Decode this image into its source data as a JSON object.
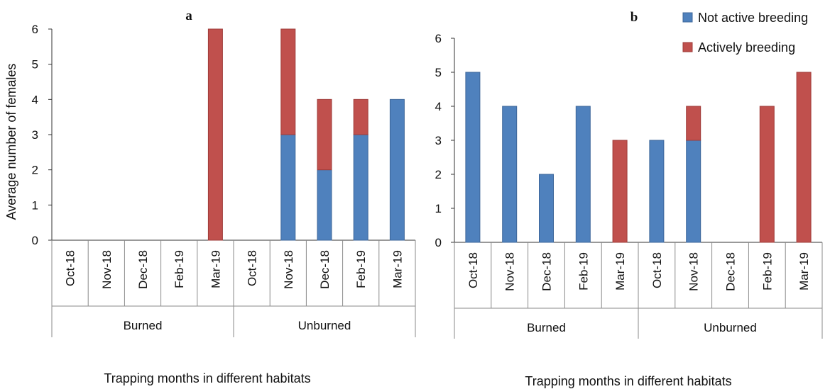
{
  "colors": {
    "not_active": "#4f81bd",
    "active": "#c0504d",
    "not_active_edge": "#3c6699",
    "active_edge": "#9e3b39"
  },
  "legend": {
    "items": [
      {
        "key": "not_active",
        "label": "Not active breeding"
      },
      {
        "key": "active",
        "label": "Actively breeding"
      }
    ],
    "placement": "top-right"
  },
  "chart_data": [
    {
      "type": "bar",
      "stacked": true,
      "panel_label": "a",
      "ylabel": "Average number of females",
      "xlabel": "Trapping months in different habitats",
      "ylim": [
        0,
        6
      ],
      "yticks": [
        0,
        1,
        2,
        3,
        4,
        5,
        6
      ],
      "categories": [
        "Oct-18",
        "Nov-18",
        "Dec-18",
        "Feb-19",
        "Mar-19",
        "Oct-18",
        "Nov-18",
        "Dec-18",
        "Feb-19",
        "Mar-19"
      ],
      "groups": [
        {
          "label": "Burned",
          "count": 5
        },
        {
          "label": "Unburned",
          "count": 5
        }
      ],
      "series": [
        {
          "name": "Not active breeding",
          "key": "not_active",
          "values": [
            0,
            0,
            0,
            0,
            0,
            0,
            3,
            2,
            3,
            4
          ]
        },
        {
          "name": "Actively breeding",
          "key": "active",
          "values": [
            0,
            0,
            0,
            0,
            6,
            0,
            3,
            2,
            1,
            0
          ]
        }
      ]
    },
    {
      "type": "bar",
      "stacked": true,
      "panel_label": "b",
      "ylabel": "",
      "xlabel": "Trapping months in different habitats",
      "ylim": [
        0,
        6
      ],
      "yticks": [
        0,
        1,
        2,
        3,
        4,
        5,
        6
      ],
      "categories": [
        "Oct-18",
        "Nov-18",
        "Dec-18",
        "Feb-19",
        "Mar-19",
        "Oct-18",
        "Nov-18",
        "Dec-18",
        "Feb-19",
        "Mar-19"
      ],
      "groups": [
        {
          "label": "Burned",
          "count": 5
        },
        {
          "label": "Unburned",
          "count": 5
        }
      ],
      "series": [
        {
          "name": "Not active breeding",
          "key": "not_active",
          "values": [
            5,
            4,
            2,
            4,
            0,
            3,
            3,
            0,
            0,
            0
          ]
        },
        {
          "name": "Actively breeding",
          "key": "active",
          "values": [
            0,
            0,
            0,
            0,
            3,
            0,
            1,
            0,
            4,
            5
          ]
        }
      ]
    }
  ]
}
